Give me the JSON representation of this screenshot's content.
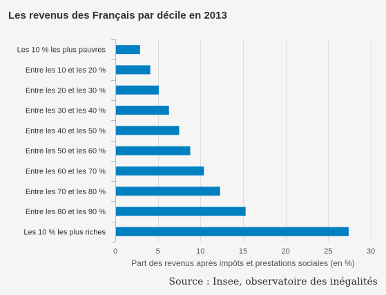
{
  "chart_data": {
    "type": "bar",
    "orientation": "horizontal",
    "title": "Les revenus des Français par décile en 2013",
    "categories": [
      "Les 10 % les plus pauvres",
      "Entre les 10 et les 20 %",
      "Entre les 20 et les 30 %",
      "Entre les 30 et les 40 %",
      "Entre les 40 et les 50 %",
      "Entre les 50 et les 60 %",
      "Entre les 60 et les 70 %",
      "Entre les 70 et les 80 %",
      "Entre les 80 et les 90 %",
      "Les 10 % les plus riches"
    ],
    "values": [
      2.9,
      4.1,
      5.1,
      6.3,
      7.5,
      8.8,
      10.4,
      12.3,
      15.3,
      27.4
    ],
    "xlabel": "Part des revenus après impôts et prestations sociales (en %)",
    "ylabel": "",
    "xlim": [
      0,
      30
    ],
    "xticks": [
      0,
      5,
      10,
      15,
      20,
      25,
      30
    ],
    "grid": true,
    "legend": "none",
    "bar_color": "#0080c0",
    "grid_color": "#dcdcdc"
  },
  "source": "Source : Insee, observatoire des inégalités"
}
